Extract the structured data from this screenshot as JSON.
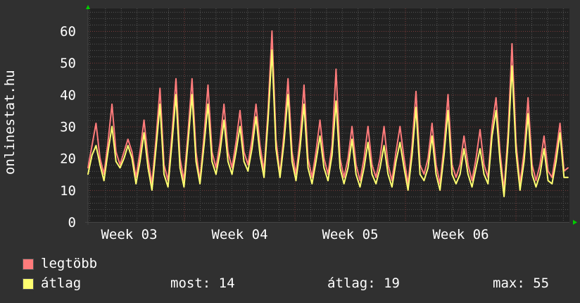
{
  "chart_data": {
    "type": "line",
    "ylabel": "onlinestat.hu",
    "ylim": [
      0,
      66
    ],
    "yticks": [
      0,
      10,
      20,
      30,
      40,
      50,
      60
    ],
    "x_unit": "6-hour samples over ~30 days",
    "x_ticks": [
      "Week 03",
      "Week 04",
      "Week 05",
      "Week 06"
    ],
    "grid": true,
    "series": [
      {
        "name": "legtöbb",
        "color": "#ff7b7b",
        "values": [
          17,
          24,
          31,
          20,
          15,
          25,
          37,
          22,
          18,
          22,
          26,
          22,
          14,
          22,
          32,
          20,
          12,
          26,
          42,
          18,
          13,
          28,
          45,
          20,
          13,
          28,
          45,
          22,
          13,
          27,
          43,
          22,
          17,
          25,
          37,
          22,
          17,
          25,
          35,
          22,
          18,
          26,
          37,
          24,
          16,
          35,
          60,
          26,
          15,
          28,
          45,
          22,
          15,
          26,
          43,
          20,
          14,
          22,
          32,
          20,
          15,
          24,
          48,
          20,
          14,
          20,
          30,
          18,
          13,
          20,
          30,
          18,
          14,
          20,
          30,
          18,
          13,
          22,
          30,
          20,
          12,
          24,
          41,
          18,
          15,
          20,
          31,
          18,
          12,
          24,
          40,
          18,
          14,
          18,
          27,
          18,
          13,
          20,
          29,
          18,
          14,
          30,
          39,
          22,
          10,
          28,
          56,
          25,
          12,
          22,
          39,
          18,
          13,
          18,
          27,
          16,
          14,
          22,
          31,
          16,
          17
        ]
      },
      {
        "name": "átlag",
        "color": "#ffff70",
        "values": [
          15,
          21,
          24,
          18,
          13,
          22,
          30,
          19,
          17,
          20,
          24,
          20,
          12,
          19,
          28,
          17,
          10,
          23,
          37,
          15,
          11,
          25,
          40,
          17,
          11,
          25,
          40,
          19,
          12,
          24,
          37,
          19,
          15,
          22,
          32,
          19,
          15,
          22,
          30,
          19,
          16,
          23,
          33,
          21,
          14,
          32,
          54,
          23,
          14,
          25,
          40,
          19,
          13,
          23,
          37,
          17,
          12,
          19,
          27,
          17,
          13,
          21,
          38,
          17,
          12,
          17,
          26,
          15,
          11,
          17,
          25,
          15,
          12,
          17,
          24,
          15,
          11,
          19,
          25,
          17,
          10,
          21,
          36,
          15,
          13,
          17,
          27,
          15,
          10,
          21,
          35,
          15,
          12,
          15,
          23,
          15,
          11,
          17,
          23,
          15,
          12,
          27,
          35,
          19,
          8,
          25,
          49,
          22,
          10,
          19,
          34,
          15,
          11,
          15,
          23,
          13,
          12,
          19,
          28,
          14,
          14
        ]
      }
    ],
    "legend": {
      "items": [
        "legtöbb",
        "átlag"
      ],
      "stats": {
        "now": "most: 14",
        "avg": "átlag: 19",
        "max": "max: 55"
      }
    }
  }
}
